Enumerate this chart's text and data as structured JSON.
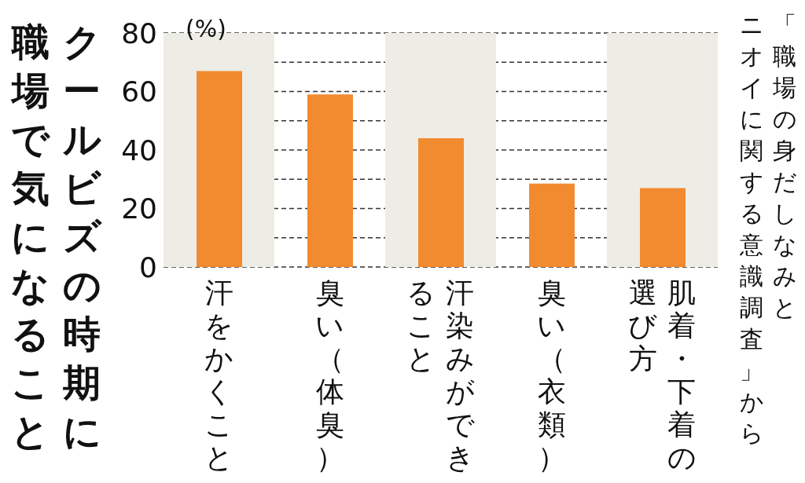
{
  "chart_data": {
    "type": "bar",
    "title": "クールビズの時期に職場で気になること",
    "ylabel": "(%)",
    "annotations": [
      "「職場の身だしなみと",
      "ニオイに関する意識調査」から"
    ],
    "categories": [
      "汗をかくこと",
      "臭い（体臭）",
      "汗染みができること",
      "臭い（衣類）",
      "肌着・下着の選び方"
    ],
    "values": [
      67,
      59,
      44,
      28.5,
      27
    ],
    "color": "#f28a30",
    "ylim": [
      0,
      80
    ],
    "yticks": [
      0,
      {
        "value": 10,
        "label": null
      },
      20,
      {
        "value": 30,
        "label": null
      },
      40,
      {
        "value": 50,
        "label": null
      },
      60,
      {
        "value": 70,
        "label": null
      },
      80
    ],
    "grid": "y",
    "bands": [
      {
        "axis": "x",
        "from": "汗をかくこと",
        "to": "汗をかくこと",
        "color": "#eeede5"
      },
      {
        "axis": "x",
        "from": "汗染みができること",
        "to": "汗染みができること",
        "color": "#eeede5"
      },
      {
        "axis": "x",
        "from": "肌着・下着の選び方",
        "to": "肌着・下着の選び方",
        "color": "#eeede5"
      }
    ]
  }
}
